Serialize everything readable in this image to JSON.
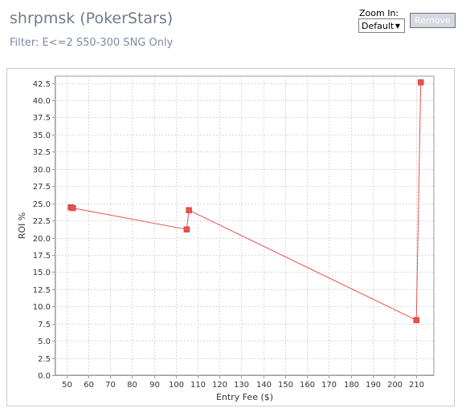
{
  "header": {
    "title": "shrpmsk (PokerStars)",
    "filter": "Filter: E<=2 S50-300 SNG Only"
  },
  "controls": {
    "zoom_label": "Zoom In:",
    "zoom_value": "Default",
    "remove_label": "Remove"
  },
  "colors": {
    "series": "#e8504f",
    "grid": "#d8d8d8",
    "axis": "#9a9a9a"
  },
  "chart_data": {
    "type": "line",
    "title": "",
    "xlabel": "Entry Fee ($)",
    "ylabel": "ROI %",
    "xlim": [
      45,
      218
    ],
    "ylim": [
      0,
      43.5
    ],
    "xticks": [
      50,
      60,
      70,
      80,
      90,
      100,
      110,
      120,
      130,
      140,
      150,
      160,
      170,
      180,
      190,
      200,
      210
    ],
    "yticks": [
      0.0,
      2.5,
      5.0,
      7.5,
      10.0,
      12.5,
      15.0,
      17.5,
      20.0,
      22.5,
      25.0,
      27.5,
      30.0,
      32.5,
      35.0,
      37.5,
      40.0,
      42.5
    ],
    "grid": true,
    "series": [
      {
        "x": [
          52,
          53,
          105,
          106,
          210,
          212
        ],
        "y": [
          24.4,
          24.3,
          21.2,
          24.0,
          8.0,
          42.6
        ]
      }
    ]
  }
}
